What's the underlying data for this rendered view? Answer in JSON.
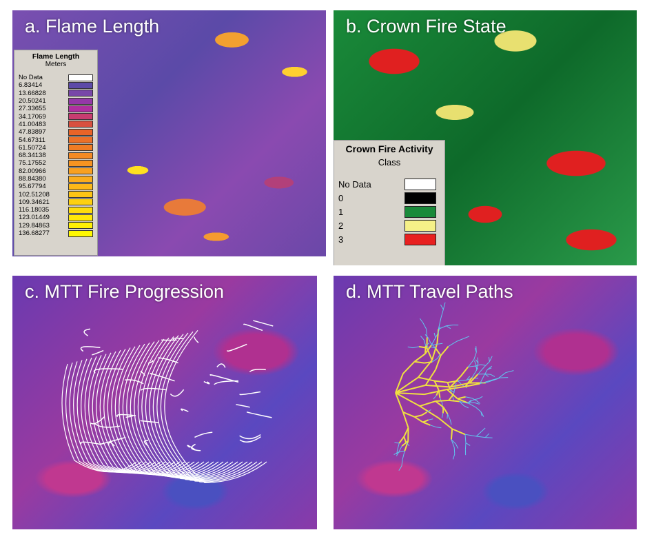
{
  "panels": {
    "a": {
      "title": "a. Flame Length",
      "legend": {
        "title": "Flame Length",
        "subtitle": "Meters",
        "items": [
          {
            "label": "No Data",
            "color": "#ffffff"
          },
          {
            "label": "6.83414",
            "color": "#5c4aa8"
          },
          {
            "label": "13.66828",
            "color": "#7846a8"
          },
          {
            "label": "20.50241",
            "color": "#9438a8"
          },
          {
            "label": "27.33655",
            "color": "#b030a0"
          },
          {
            "label": "34.17069",
            "color": "#c83c70"
          },
          {
            "label": "41.00483",
            "color": "#d85040"
          },
          {
            "label": "47.83897",
            "color": "#e86428"
          },
          {
            "label": "54.67311",
            "color": "#ec7028"
          },
          {
            "label": "61.50724",
            "color": "#f07c24"
          },
          {
            "label": "68.34138",
            "color": "#f48a24"
          },
          {
            "label": "75.17552",
            "color": "#f69420"
          },
          {
            "label": "82.00966",
            "color": "#f8a020"
          },
          {
            "label": "88.84380",
            "color": "#faac1c"
          },
          {
            "label": "95.67794",
            "color": "#fcb818"
          },
          {
            "label": "102.51208",
            "color": "#fcc414"
          },
          {
            "label": "109.34621",
            "color": "#fed010"
          },
          {
            "label": "116.18035",
            "color": "#fedc0c"
          },
          {
            "label": "123.01449",
            "color": "#ffe808"
          },
          {
            "label": "129.84863",
            "color": "#fff004"
          },
          {
            "label": "136.68277",
            "color": "#fff800"
          }
        ]
      }
    },
    "b": {
      "title": "b. Crown Fire State",
      "legend": {
        "title": "Crown Fire Activity",
        "subtitle": "Class",
        "items": [
          {
            "label": "No Data",
            "color": "#ffffff"
          },
          {
            "label": "0",
            "color": "#000000"
          },
          {
            "label": "1",
            "color": "#1a8a3a"
          },
          {
            "label": "2",
            "color": "#f5f088"
          },
          {
            "label": "3",
            "color": "#e82020"
          }
        ]
      }
    },
    "c": {
      "title": "c. MTT Fire Progression",
      "line_color": "#ffffff"
    },
    "d": {
      "title": "d. MTT Travel Paths",
      "line_colors": [
        "#f0e040",
        "#60c8f0"
      ]
    }
  }
}
